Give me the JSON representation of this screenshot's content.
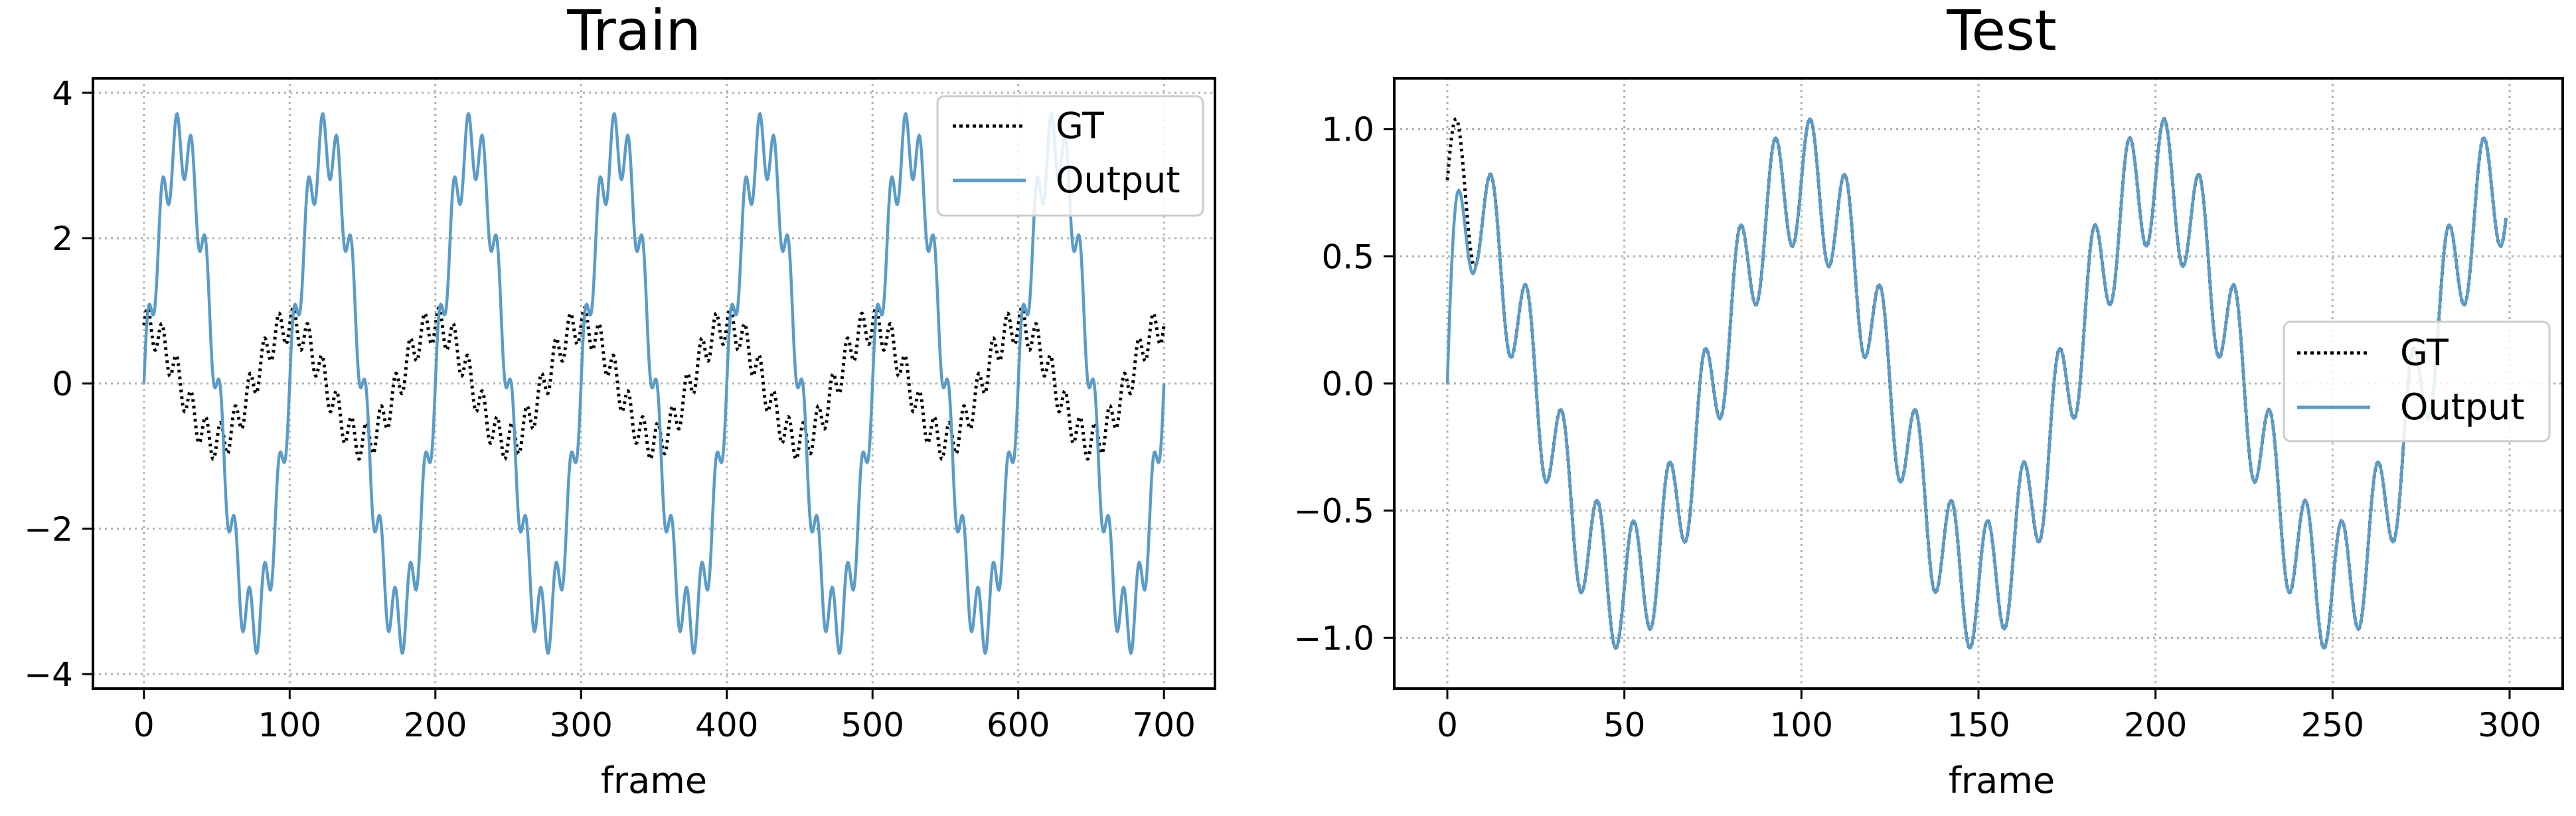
{
  "chart_data": [
    {
      "type": "line",
      "title": "Train",
      "xlabel": "frame",
      "ylabel": "",
      "xlim": [
        -35,
        735
      ],
      "ylim": [
        -4.2,
        4.2
      ],
      "xticks": [
        0,
        100,
        200,
        300,
        400,
        500,
        600,
        700
      ],
      "yticks": [
        -4,
        -2,
        0,
        2,
        4
      ],
      "ytick_labels": [
        "−4",
        "−2",
        "0",
        "2",
        "4"
      ],
      "grid": true,
      "legend_position": "top-right",
      "series": [
        {
          "name": "GT",
          "style": "dotted",
          "color": "#000000",
          "x_range": [
            0,
            700
          ],
          "points": 701,
          "formula": "0.8*cos(2*pi*x/100) + 0.25*sin(2*pi*x/10)",
          "values_every_25": [
            0.8,
            0.0,
            -0.8,
            0.0,
            0.8,
            0.0,
            -0.8,
            0.0,
            0.8,
            0.0,
            -0.8,
            0.0,
            0.8,
            0.0,
            -0.8,
            0.0,
            0.8,
            0.0,
            -0.8,
            0.0,
            0.8,
            0.0,
            -0.8,
            0.0,
            0.8,
            0.0,
            -0.8,
            0.0,
            0.8
          ]
        },
        {
          "name": "Output",
          "style": "solid",
          "color": "#5b9bc8",
          "x_range": [
            0,
            700
          ],
          "points": 701,
          "formula": "3.3*sin(2*pi*x/100) + 0.45*sin(2*pi*x/10)",
          "values_every_25": [
            0.0,
            3.3,
            0.0,
            -3.3,
            0.0,
            3.3,
            0.0,
            -3.3,
            0.0,
            3.3,
            0.0,
            -3.3,
            0.0,
            3.3,
            0.0,
            -3.3,
            0.0,
            3.3,
            0.0,
            -3.3,
            0.0,
            3.3,
            0.0,
            -3.3,
            0.0,
            3.3,
            0.0,
            -3.3,
            0.0
          ]
        }
      ]
    },
    {
      "type": "line",
      "title": "Test",
      "xlabel": "frame",
      "ylabel": "",
      "xlim": [
        -15,
        315
      ],
      "ylim": [
        -1.2,
        1.2
      ],
      "xticks": [
        0,
        50,
        100,
        150,
        200,
        250,
        300
      ],
      "yticks": [
        -1.0,
        -0.5,
        0.0,
        0.5,
        1.0
      ],
      "ytick_labels": [
        "−1.0",
        "−0.5",
        "0.0",
        "0.5",
        "1.0"
      ],
      "grid": true,
      "legend_position": "center-right",
      "series": [
        {
          "name": "GT",
          "style": "dotted",
          "color": "#000000",
          "x_range": [
            0,
            299
          ],
          "points": 300,
          "formula": "0.8*cos(2*pi*x/100) + 0.25*sin(2*pi*x/10)",
          "values_every_25": [
            0.8,
            0.0,
            -0.8,
            0.0,
            0.8,
            0.0,
            -0.8,
            0.0,
            0.8,
            0.0,
            -0.8,
            0.0
          ]
        },
        {
          "name": "Output",
          "style": "solid",
          "color": "#5b9bc8",
          "x_range": [
            0,
            299
          ],
          "points": 300,
          "formula": "matches GT after a short transient starting at 0",
          "values_every_25": [
            0.0,
            0.0,
            -0.8,
            0.0,
            0.8,
            0.0,
            -0.8,
            0.0,
            0.8,
            0.0,
            -0.8,
            0.0
          ]
        }
      ]
    }
  ]
}
